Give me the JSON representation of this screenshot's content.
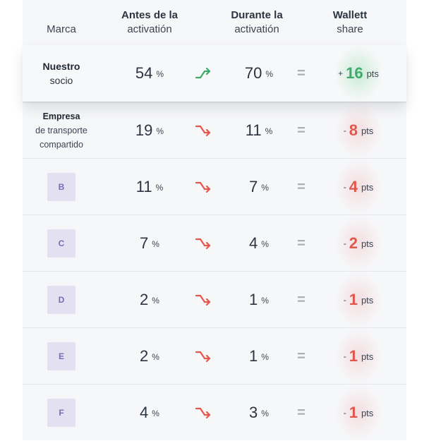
{
  "header": {
    "brand": "Marca",
    "before_line1": "Antes de la",
    "before_line2": "activatión",
    "during_line1": "Durante la",
    "during_line2": "activatión",
    "wallet_line1": "Wallett",
    "wallet_line2": "share"
  },
  "colors": {
    "positive": "#3dab6a",
    "negative": "#e2574c",
    "badge_bg": "#e3e0f1",
    "badge_text": "#7b6bb0"
  },
  "rows": [
    {
      "brand_bold": "Nuestro",
      "brand_sub": "socio",
      "before": "54",
      "during": "70",
      "sign": "+",
      "change": "16",
      "trend": "up"
    },
    {
      "brand_bold": "Empresa",
      "brand_sub": "de transporte",
      "brand_sub2": "compartido",
      "before": "19",
      "during": "11",
      "sign": "-",
      "change": "8",
      "trend": "down"
    },
    {
      "badge": "B",
      "before": "11",
      "during": "7",
      "sign": "-",
      "change": "4",
      "trend": "down"
    },
    {
      "badge": "C",
      "before": "7",
      "during": "4",
      "sign": "-",
      "change": "2",
      "trend": "down"
    },
    {
      "badge": "D",
      "before": "2",
      "during": "1",
      "sign": "-",
      "change": "1",
      "trend": "down"
    },
    {
      "badge": "E",
      "before": "2",
      "during": "1",
      "sign": "-",
      "change": "1",
      "trend": "down"
    },
    {
      "badge": "F",
      "before": "4",
      "during": "3",
      "sign": "-",
      "change": "1",
      "trend": "down"
    }
  ],
  "units": {
    "percent": "%",
    "points": "pts"
  },
  "symbols": {
    "equals": "="
  },
  "icons": {
    "up": "trend-up-arrow-icon",
    "down": "trend-down-arrow-icon"
  }
}
